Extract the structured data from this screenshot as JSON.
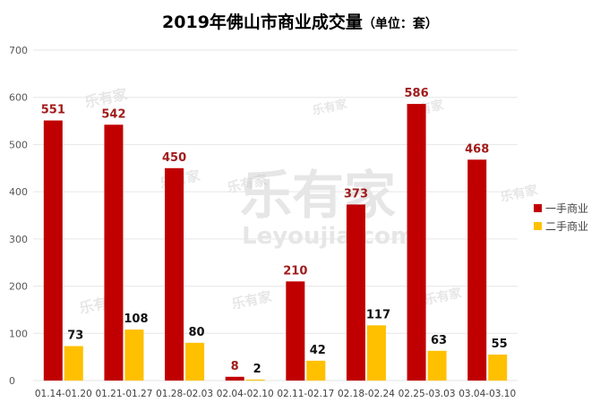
{
  "title": {
    "main": "2019年佛山市商业成交量",
    "unit": "（单位：套）"
  },
  "watermark": {
    "brand": "乐有家",
    "domain": "Leyoujia.com"
  },
  "colors": {
    "series1": "#c00000",
    "series2": "#ffc000",
    "label1": "#a01b1b",
    "label2": "#111111",
    "grid": "#e6e6e6"
  },
  "chart_data": {
    "type": "bar",
    "title": "2019年佛山市商业成交量（单位：套）",
    "xlabel": "",
    "ylabel": "",
    "ylim": [
      0,
      700
    ],
    "yticks": [
      0,
      100,
      200,
      300,
      400,
      500,
      600,
      700
    ],
    "grid": true,
    "legend_position": "right",
    "categories": [
      "01.14-01.20",
      "01.21-01.27",
      "01.28-02.03",
      "02.04-02.10",
      "02.11-02.17",
      "02.18-02.24",
      "02.25-03.03",
      "03.04-03.10"
    ],
    "series": [
      {
        "name": "一手商业",
        "values": [
          551,
          542,
          450,
          8,
          210,
          373,
          586,
          468
        ]
      },
      {
        "name": "二手商业",
        "values": [
          73,
          108,
          80,
          2,
          42,
          117,
          63,
          55
        ]
      }
    ]
  }
}
